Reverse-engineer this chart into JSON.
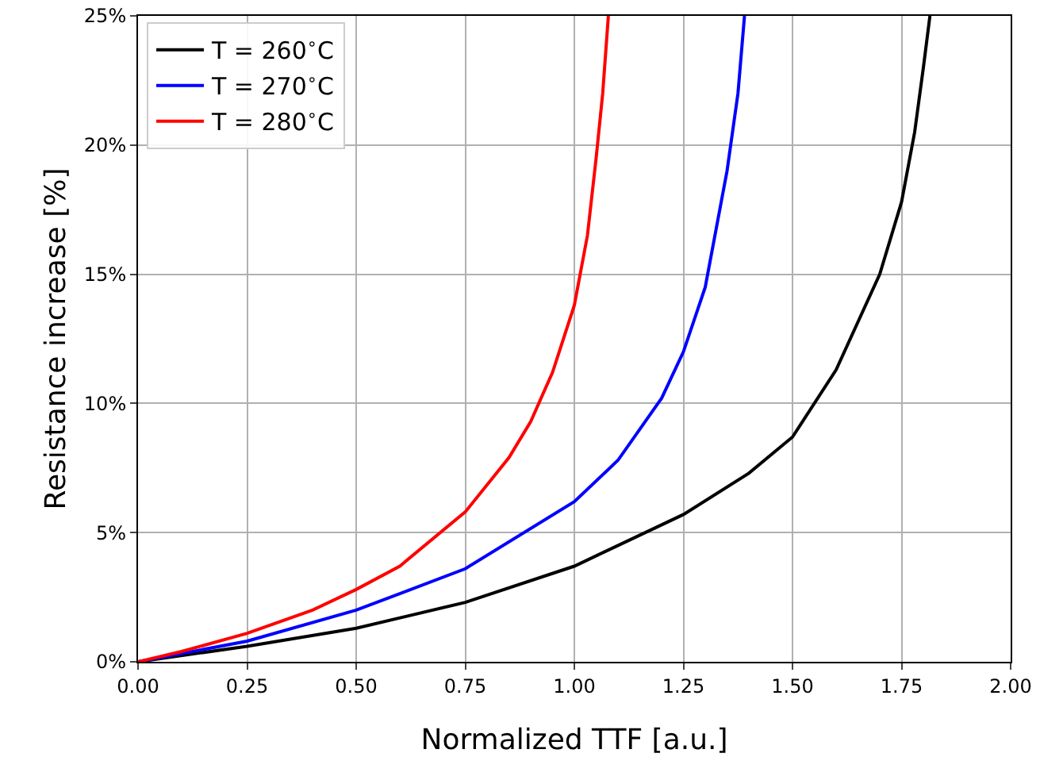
{
  "chart_data": {
    "type": "line",
    "xlabel": "Normalized TTF [a.u.]",
    "ylabel": "Resistance increase [%]",
    "xlim": [
      0,
      2
    ],
    "xticks": [
      {
        "value": 0,
        "label": "0.00"
      },
      {
        "value": 0.25,
        "label": "0.25"
      },
      {
        "value": 0.5,
        "label": "0.50"
      },
      {
        "value": 0.75,
        "label": "0.75"
      },
      {
        "value": 1,
        "label": "1.00"
      },
      {
        "value": 1.25,
        "label": "1.25"
      },
      {
        "value": 1.5,
        "label": "1.50"
      },
      {
        "value": 1.75,
        "label": "1.75"
      },
      {
        "value": 2,
        "label": "2.00"
      }
    ],
    "ylim": [
      0,
      25
    ],
    "yticks": [
      {
        "value": 0,
        "label": "0%"
      },
      {
        "value": 5,
        "label": "5%"
      },
      {
        "value": 10,
        "label": "10%"
      },
      {
        "value": 15,
        "label": "15%"
      },
      {
        "value": 20,
        "label": "20%"
      },
      {
        "value": 25,
        "label": "25%"
      }
    ],
    "grid": true,
    "legend": "top left",
    "marker": "none",
    "line_style": "solid",
    "series": [
      {
        "name": "T = 260$^{∘}$C",
        "color": "#000000",
        "x": [
          0,
          0.25,
          0.5,
          0.75,
          1.0,
          1.25,
          1.4,
          1.5,
          1.6,
          1.7,
          1.75,
          1.78,
          1.8,
          1.815
        ],
        "values": [
          0,
          0.6,
          1.3,
          2.3,
          3.7,
          5.7,
          7.3,
          8.7,
          11.3,
          15.0,
          17.8,
          20.5,
          23,
          25
        ]
      },
      {
        "name": "T = 270$^{∘}$C",
        "color": "#0000ff",
        "x": [
          0,
          0.25,
          0.5,
          0.75,
          1.0,
          1.1,
          1.2,
          1.25,
          1.3,
          1.35,
          1.375,
          1.39
        ],
        "values": [
          0,
          0.8,
          2.0,
          3.6,
          6.2,
          7.8,
          10.2,
          12.0,
          14.5,
          19,
          22,
          25
        ]
      },
      {
        "name": "T = 280$^{∘}$C",
        "color": "#ff0000",
        "x": [
          0,
          0.1,
          0.25,
          0.4,
          0.5,
          0.6,
          0.75,
          0.85,
          0.9,
          0.95,
          1.0,
          1.03,
          1.05,
          1.065,
          1.078
        ],
        "values": [
          0,
          0.4,
          1.1,
          2.0,
          2.8,
          3.7,
          5.8,
          7.9,
          9.3,
          11.2,
          13.8,
          16.5,
          19.5,
          22,
          25
        ]
      }
    ]
  }
}
